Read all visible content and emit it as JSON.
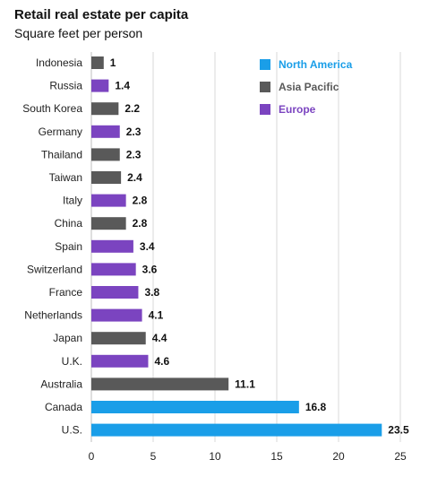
{
  "title": "Retail real estate per capita",
  "subtitle": "Square feet per person",
  "chart_data": {
    "type": "bar",
    "orientation": "horizontal",
    "title": "Retail real estate per capita",
    "subtitle": "Square feet per person",
    "xlim": [
      0,
      25
    ],
    "xticks": [
      0,
      5,
      10,
      15,
      20,
      25
    ],
    "grid": true,
    "legend_position": "top-right",
    "legend": [
      {
        "name": "North America",
        "color": "#1a9ee8"
      },
      {
        "name": "Asia Pacific",
        "color": "#595959"
      },
      {
        "name": "Europe",
        "color": "#7b44c0"
      }
    ],
    "categories": [
      "Indonesia",
      "Russia",
      "South Korea",
      "Germany",
      "Thailand",
      "Taiwan",
      "Italy",
      "China",
      "Spain",
      "Switzerland",
      "France",
      "Netherlands",
      "Japan",
      "U.K.",
      "Australia",
      "Canada",
      "U.S."
    ],
    "values": [
      1,
      1.4,
      2.2,
      2.3,
      2.3,
      2.4,
      2.8,
      2.8,
      3.4,
      3.6,
      3.8,
      4.1,
      4.4,
      4.6,
      11.1,
      16.8,
      23.5
    ],
    "labels": [
      "1",
      "1.4",
      "2.2",
      "2.3",
      "2.3",
      "2.4",
      "2.8",
      "2.8",
      "3.4",
      "3.6",
      "3.8",
      "4.1",
      "4.4",
      "4.6",
      "11.1",
      "16.8",
      "23.5"
    ],
    "regions": [
      "Asia Pacific",
      "Europe",
      "Asia Pacific",
      "Europe",
      "Asia Pacific",
      "Asia Pacific",
      "Europe",
      "Asia Pacific",
      "Europe",
      "Europe",
      "Europe",
      "Europe",
      "Asia Pacific",
      "Europe",
      "Asia Pacific",
      "North America",
      "North America"
    ]
  }
}
